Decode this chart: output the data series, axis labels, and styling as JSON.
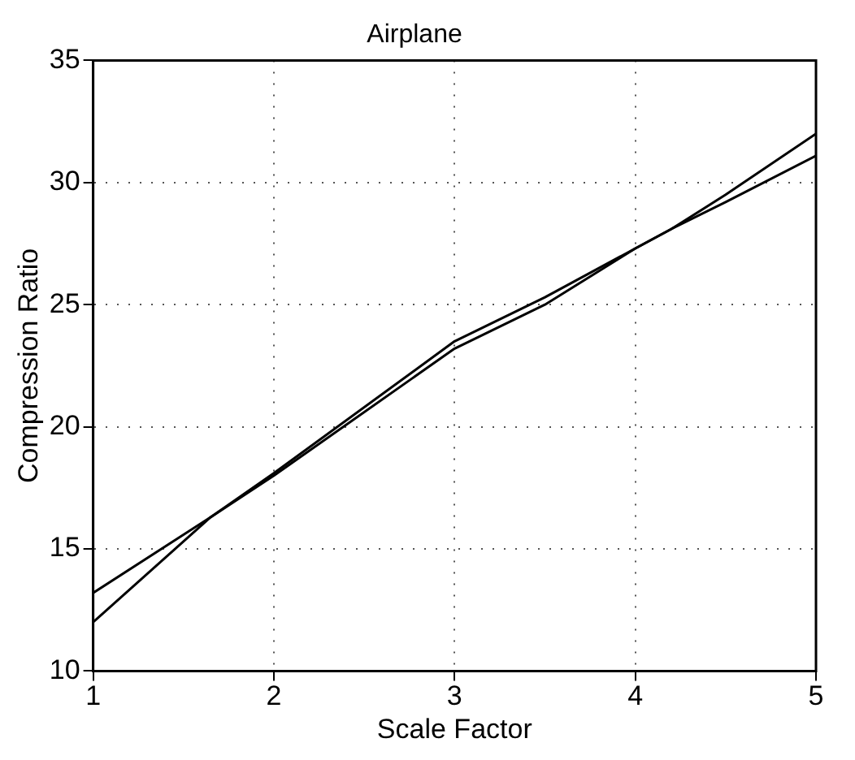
{
  "chart_data": {
    "type": "line",
    "title": "Airplane",
    "xlabel": "Scale Factor",
    "ylabel": "Compression Ratio",
    "xlim": [
      1,
      5
    ],
    "xticks": [
      1,
      2,
      3,
      4,
      5
    ],
    "ylim": [
      10,
      35
    ],
    "yticks": [
      10,
      15,
      20,
      25,
      30,
      35
    ],
    "grid": true,
    "marker": "none",
    "line_style": "solid",
    "series": [
      {
        "color": "#000000",
        "x": [
          1,
          1.65,
          2,
          3,
          3.5,
          4,
          4.2,
          4.5,
          5
        ],
        "values": [
          13.2,
          16.3,
          18.0,
          23.2,
          25.0,
          27.3,
          28.1,
          29.2,
          31.1
        ]
      },
      {
        "color": "#000000",
        "x": [
          1,
          1.65,
          2,
          3,
          3.5,
          4,
          4.2,
          4.5,
          5
        ],
        "values": [
          12.0,
          16.3,
          18.1,
          23.5,
          25.3,
          27.3,
          28.1,
          29.5,
          32.0
        ]
      }
    ]
  }
}
